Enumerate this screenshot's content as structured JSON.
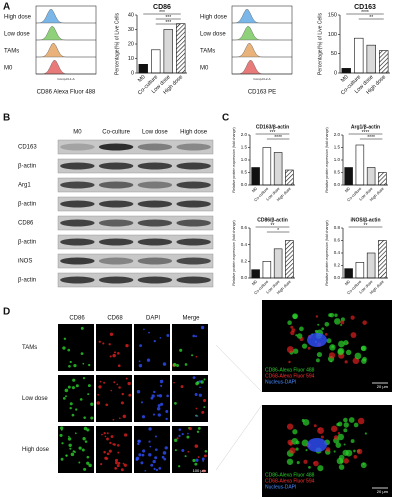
{
  "panels": {
    "a": "A",
    "b": "B",
    "c": "C",
    "d": "D"
  },
  "flow": [
    {
      "rows": [
        "High dose",
        "Low dose",
        "TAMs",
        "M0"
      ],
      "axis": "Comp-FL1-A",
      "label": "CD86 Alexa Fluor 488",
      "colors": [
        "#7ab6e8",
        "#8fd07a",
        "#e8b27a",
        "#e87a7a"
      ]
    },
    {
      "rows": [
        "High dose",
        "Low dose",
        "TAMs",
        "M0"
      ],
      "axis": "Comp-FL2-A",
      "label": "CD163 PE",
      "colors": [
        "#7ab6e8",
        "#8fd07a",
        "#e8b27a",
        "#e87a7a"
      ]
    }
  ],
  "chart_data": [
    {
      "type": "bar",
      "title": "CD86",
      "ylabel": "Percentage(%) of Live Cells",
      "categories": [
        "M0",
        "Co-culture",
        "Low dose",
        "High dose"
      ],
      "values": [
        6,
        16,
        30,
        34
      ],
      "colors": [
        "#111111",
        "#ffffff",
        "#d9d9d9",
        "#ffffff"
      ],
      "hatched": [
        false,
        false,
        false,
        true
      ],
      "ylim": [
        0,
        40
      ],
      "yticks": [
        0,
        10,
        20,
        30,
        40
      ],
      "annotations": [
        "***",
        "***",
        "***"
      ]
    },
    {
      "type": "bar",
      "title": "CD163",
      "ylabel": "Percentage(%) of Live Cells",
      "categories": [
        "M0",
        "Co-culture",
        "Low dose",
        "High dose"
      ],
      "values": [
        12,
        90,
        72,
        58
      ],
      "colors": [
        "#111111",
        "#ffffff",
        "#d9d9d9",
        "#ffffff"
      ],
      "hatched": [
        false,
        false,
        false,
        true
      ],
      "ylim": [
        0,
        150
      ],
      "yticks": [
        0,
        50,
        100,
        150
      ],
      "annotations": [
        "****",
        "**"
      ]
    },
    {
      "type": "bar",
      "title": "CD163/β-actin",
      "ylabel": "Relative protein expression (fold change)",
      "categories": [
        "M0",
        "Co-culture",
        "Low dose",
        "High dose"
      ],
      "values": [
        0.7,
        1.5,
        1.3,
        0.6
      ],
      "colors": [
        "#111111",
        "#ffffff",
        "#d9d9d9",
        "#ffffff"
      ],
      "hatched": [
        false,
        false,
        false,
        true
      ],
      "ylim": [
        0,
        2
      ],
      "yticks": [
        {
          "value": 0,
          "label": "0.0"
        },
        {
          "value": 0.5,
          "label": "0.5"
        },
        {
          "value": 1,
          "label": "1.0"
        },
        {
          "value": 1.5,
          "label": "1.5"
        },
        {
          "value": 2,
          "label": "2.0"
        }
      ],
      "annotations": [
        "***",
        "****"
      ]
    },
    {
      "type": "bar",
      "title": "Arg1/β-actin",
      "ylabel": "Relative protein expression (fold change)",
      "categories": [
        "M0",
        "Co-culture",
        "Low dose",
        "High dose"
      ],
      "values": [
        0.7,
        1.6,
        0.7,
        0.5
      ],
      "colors": [
        "#111111",
        "#ffffff",
        "#d9d9d9",
        "#ffffff"
      ],
      "hatched": [
        false,
        false,
        false,
        true
      ],
      "ylim": [
        0,
        2
      ],
      "yticks": [
        {
          "value": 0,
          "label": "0.0"
        },
        {
          "value": 0.5,
          "label": "0.5"
        },
        {
          "value": 1,
          "label": "1.0"
        },
        {
          "value": 1.5,
          "label": "1.5"
        },
        {
          "value": 2,
          "label": "2.0"
        }
      ],
      "annotations": [
        "****",
        "****"
      ]
    },
    {
      "type": "bar",
      "title": "CD86/β-actin",
      "ylabel": "Relative protein expression (fold change)",
      "categories": [
        "M0",
        "Co-culture",
        "Low dose",
        "High dose"
      ],
      "values": [
        0.1,
        0.2,
        0.35,
        0.45
      ],
      "colors": [
        "#111111",
        "#ffffff",
        "#d9d9d9",
        "#ffffff"
      ],
      "hatched": [
        false,
        false,
        false,
        true
      ],
      "ylim": [
        0,
        0.6
      ],
      "yticks": [
        {
          "value": 0,
          "label": "0.0"
        },
        {
          "value": 0.2,
          "label": "0.2"
        },
        {
          "value": 0.4,
          "label": "0.4"
        },
        {
          "value": 0.6,
          "label": "0.6"
        }
      ],
      "annotations": [
        "**",
        "*"
      ]
    },
    {
      "type": "bar",
      "title": "iNOS/β-actin",
      "ylabel": "Relative protein expression (fold change)",
      "categories": [
        "M0",
        "Co-culture",
        "Low dose",
        "High dose"
      ],
      "values": [
        0.15,
        0.25,
        0.4,
        0.6
      ],
      "colors": [
        "#111111",
        "#ffffff",
        "#d9d9d9",
        "#ffffff"
      ],
      "hatched": [
        false,
        false,
        false,
        true
      ],
      "ylim": [
        0,
        0.8
      ],
      "yticks": [
        {
          "value": 0,
          "label": "0.0"
        },
        {
          "value": 0.2,
          "label": "0.2"
        },
        {
          "value": 0.4,
          "label": "0.4"
        },
        {
          "value": 0.6,
          "label": "0.6"
        },
        {
          "value": 0.8,
          "label": "0.8"
        }
      ],
      "annotations": [
        "**"
      ]
    }
  ],
  "blot": {
    "columns": [
      "M0",
      "Co-culture",
      "Low dose",
      "High dose"
    ],
    "rows": [
      "CD163",
      "β-actin",
      "Arg1",
      "β-actin",
      "CD86",
      "β-actin",
      "iNOS",
      "β-actin"
    ]
  },
  "micro": {
    "columns": [
      "CD86",
      "CD68",
      "DAPI",
      "Merge"
    ],
    "rows": [
      "TAMs",
      "Low dose",
      "High dose"
    ],
    "scale": "100 μm",
    "legend": [
      "CD86-Alexa Fluor 488",
      "CD68-Alexa Fluor 594",
      "Nucleus-DAPI"
    ],
    "zoom_scale": "20 μm"
  }
}
